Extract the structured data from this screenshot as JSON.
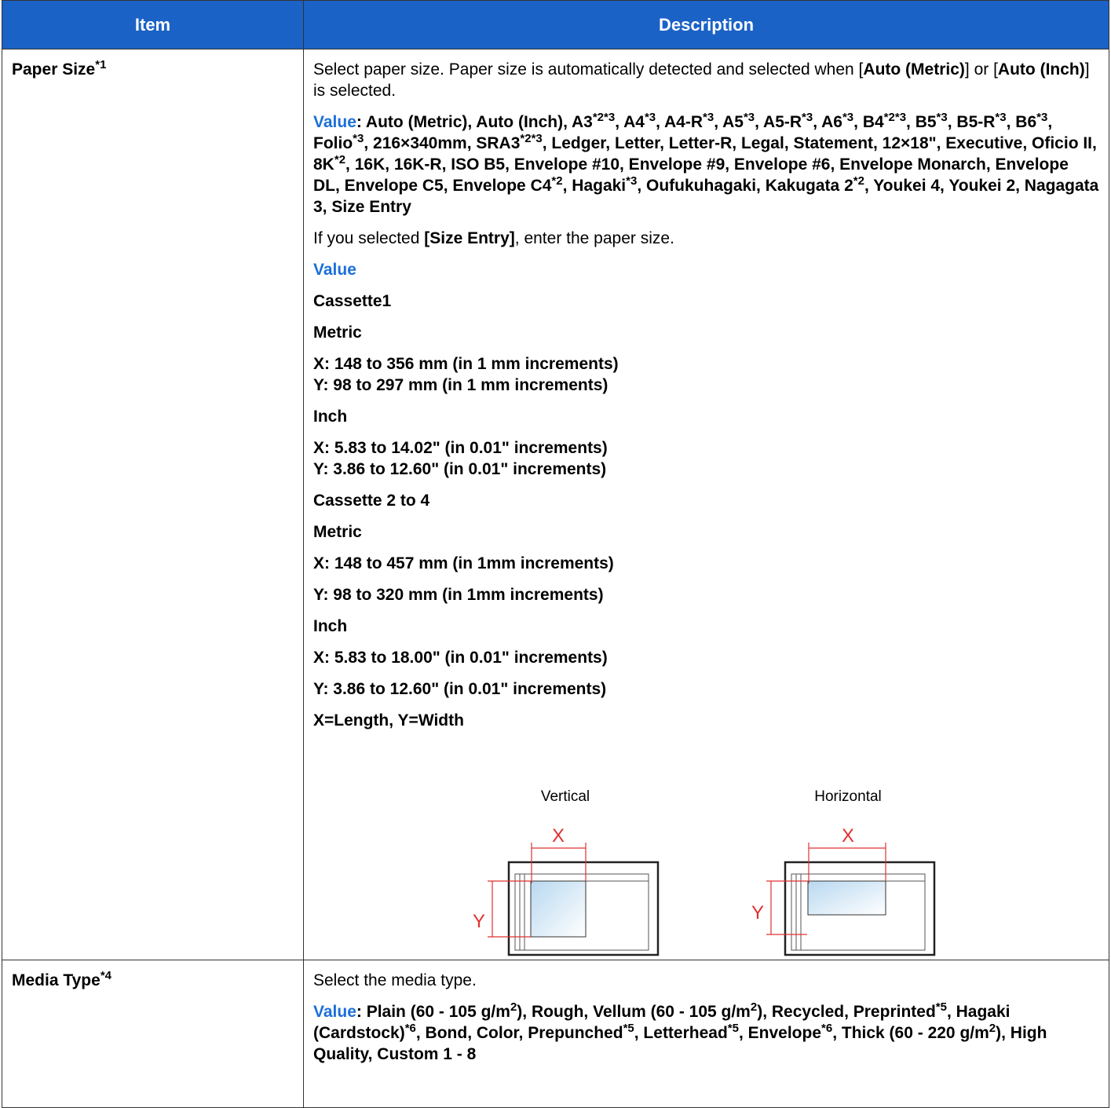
{
  "table": {
    "header": {
      "item": "Item",
      "description": "Description"
    },
    "rows": [
      {
        "item": [
          "Paper Size",
          "*1"
        ],
        "description": {
          "intro": [
            "Select paper size. Paper size is automatically detected and selected when [",
            "Auto (Metric)",
            "] or [",
            "Auto (Inch)",
            "] is selected."
          ],
          "value_label": "Value",
          "values": [
            ": Auto (Metric), Auto (Inch), A3",
            "*2*3",
            ", A4",
            "*3",
            ", A4-R",
            "*3",
            ", A5",
            "*3",
            ", A5-R",
            "*3",
            ", A6",
            "*3",
            ", B4",
            "*2*3",
            ", B5",
            "*3",
            ", B5-R",
            "*3",
            ", B6",
            "*3",
            ", Folio",
            "*3",
            ", 216×340mm, SRA3",
            "*2*3",
            ", Ledger, Letter, Letter-R, Legal, Statement, 12×18\", Executive, Oficio II, 8K",
            "*2",
            ", 16K, 16K-R, ISO B5, Envelope #10, Envelope #9, Envelope #6, Envelope Monarch, Envelope DL, Envelope C5, Envelope C4",
            "*2",
            ", Hagaki",
            "*3",
            ", Oufukuhagaki, Kakugata 2",
            "*2",
            ", Youkei 4, Youkei 2, Nagagata 3, Size Entry"
          ],
          "size_entry_note": [
            "If you selected ",
            "[Size Entry]",
            ", enter the paper size."
          ],
          "size_entry_label": "Value",
          "size_entry": [
            [
              "Cassette1"
            ],
            [
              "Metric"
            ],
            [
              "X: 148 to 356 mm (in 1 mm increments)",
              "Y: 98 to 297 mm (in 1 mm increments)"
            ],
            [
              "Inch"
            ],
            [
              "X: 5.83 to 14.02\" (in 0.01\" increments)",
              "Y: 3.86 to 12.60\" (in 0.01\" increments)"
            ],
            [
              "Cassette 2 to 4"
            ],
            [
              "Metric"
            ],
            [
              "X: 148 to 457 mm (in 1mm increments)"
            ],
            [
              "Y: 98 to 320 mm (in 1mm increments)"
            ],
            [
              "Inch"
            ],
            [
              "X: 5.83 to 18.00\" (in 0.01\" increments)"
            ],
            [
              "Y: 3.86 to 12.60\" (in 0.01\" increments)"
            ],
            [
              "X=Length, Y=Width"
            ]
          ],
          "figure": {
            "vertical": {
              "caption": "Vertical",
              "x": "X",
              "y": "Y"
            },
            "horizontal": {
              "caption": "Horizontal",
              "x": "X",
              "y": "Y"
            }
          }
        }
      },
      {
        "item": [
          "Media Type",
          "*4"
        ],
        "description": {
          "intro": [
            "Select the media type."
          ],
          "value_label": "Value",
          "values": [
            ": Plain (60 - 105 g/m",
            "2",
            "), Rough, Vellum (60 - 105 g/m",
            "2",
            "), Recycled, Preprinted",
            "*5",
            ", Hagaki (Cardstock)",
            "*6",
            ", Bond, Color, Prepunched",
            "*5",
            ", Letterhead",
            "*5",
            ", Envelope",
            "*6",
            ", Thick (60 - 220 g/m",
            "2",
            "), High Quality, Custom 1 - 8"
          ]
        }
      }
    ]
  }
}
